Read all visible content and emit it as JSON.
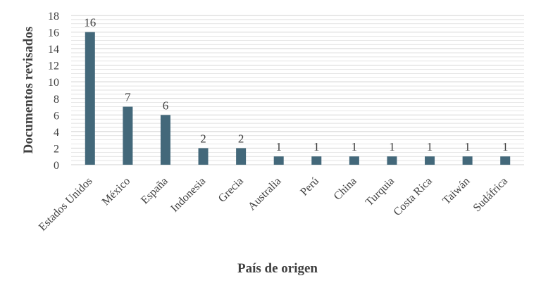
{
  "chart_data": {
    "type": "bar",
    "xlabel": "País de origen",
    "ylabel": "Documentos revisados",
    "ylim": [
      0,
      18
    ],
    "yticks": [
      0,
      2,
      4,
      6,
      8,
      10,
      12,
      14,
      16,
      18
    ],
    "grid": true,
    "categories": [
      "Estados Unidos",
      "México",
      "España",
      "Indonesia",
      "Grecia",
      "Australia",
      "Perú",
      "China",
      "Turquia",
      "Costa Rica",
      "Taiwán",
      "Sudáfrica"
    ],
    "series": [
      {
        "values": [
          16,
          7,
          6,
          2,
          2,
          1,
          1,
          1,
          1,
          1,
          1,
          1
        ]
      }
    ],
    "data_labels": [
      "16",
      "7",
      "6",
      "2",
      "2",
      "1",
      "1",
      "1",
      "1",
      "1",
      "1",
      "1"
    ],
    "colors": {
      "bar": "#43687A",
      "grid": "#D9D9D9",
      "text": "#404040"
    }
  }
}
